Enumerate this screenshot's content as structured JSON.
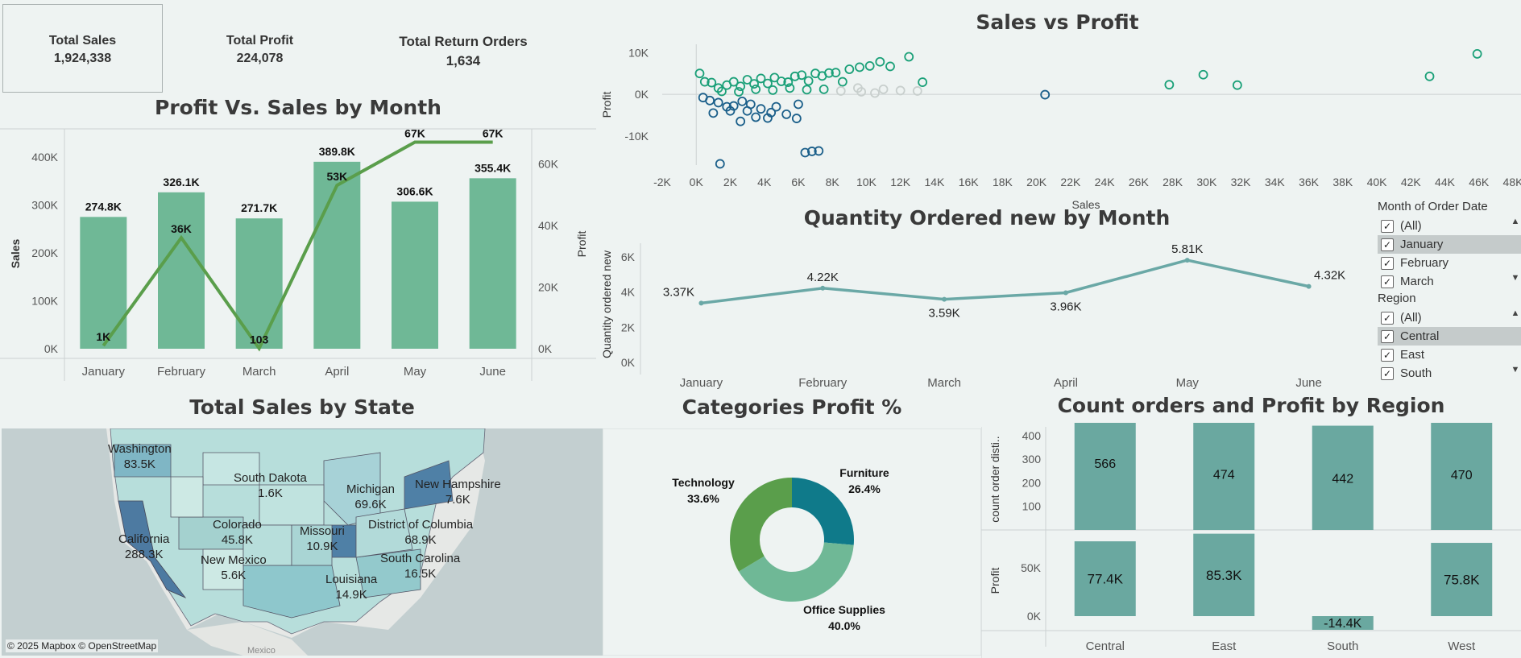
{
  "kpis": {
    "total_sales": {
      "label": "Total Sales",
      "value": "1,924,338"
    },
    "total_profit": {
      "label": "Total Profit",
      "value": "224,078"
    },
    "total_returns": {
      "label": "Total Return Orders",
      "value": "1,634"
    }
  },
  "titles": {
    "profit_sales_month": "Profit Vs. Sales by Month",
    "sales_vs_profit": "Sales vs Profit",
    "qty_month": "Quantity Ordered new by Month",
    "sales_state": "Total Sales by State",
    "cat_profit": "Categories Profit %",
    "region": "Count orders and Profit by Region"
  },
  "chart_data": [
    {
      "type": "bar",
      "title": "Profit Vs. Sales by Month",
      "categories": [
        "January",
        "February",
        "March",
        "April",
        "May",
        "June"
      ],
      "series": [
        {
          "name": "Sales",
          "values": [
            274800,
            326100,
            271700,
            389800,
            306600,
            355400
          ],
          "labels": [
            "274.8K",
            "326.1K",
            "271.7K",
            "389.8K",
            "306.6K",
            "355.4K"
          ]
        },
        {
          "name": "Profit",
          "values": [
            1000,
            36000,
            103,
            53000,
            67000,
            67000
          ],
          "labels": [
            "1K",
            "36K",
            "103",
            "53K",
            "67K",
            "67K"
          ]
        }
      ],
      "ylabel": "Sales",
      "y2label": "Profit",
      "ylim": [
        0,
        450000
      ],
      "y2lim": [
        0,
        70000
      ],
      "yticks": [
        "400K",
        "300K",
        "200K",
        "100K",
        "0K"
      ],
      "y2ticks": [
        "60K",
        "40K",
        "20K",
        "0K"
      ],
      "colors": {
        "bars": "#6fb896",
        "line": "#5a9e4b"
      }
    },
    {
      "type": "scatter",
      "title": "Sales vs Profit",
      "xlabel": "Sales",
      "ylabel": "Profit",
      "xlim": [
        -2000,
        48000
      ],
      "ylim": [
        -17000,
        12000
      ],
      "xticks": [
        "-2K",
        "0K",
        "2K",
        "4K",
        "6K",
        "8K",
        "10K",
        "12K",
        "14K",
        "16K",
        "18K",
        "20K",
        "22K",
        "24K",
        "26K",
        "28K",
        "30K",
        "32K",
        "34K",
        "36K",
        "38K",
        "40K",
        "42K",
        "44K",
        "46K",
        "48K"
      ],
      "yticks": [
        "10K",
        "0K",
        "-10K"
      ],
      "points": [
        [
          200,
          5000
        ],
        [
          500,
          3000
        ],
        [
          900,
          2800
        ],
        [
          1300,
          1500
        ],
        [
          1800,
          2200
        ],
        [
          2200,
          3000
        ],
        [
          2600,
          1900
        ],
        [
          3000,
          3500
        ],
        [
          3400,
          2500
        ],
        [
          3800,
          3800
        ],
        [
          4200,
          2600
        ],
        [
          4600,
          4000
        ],
        [
          5000,
          3100
        ],
        [
          5400,
          2900
        ],
        [
          5800,
          4300
        ],
        [
          6200,
          4600
        ],
        [
          6600,
          3200
        ],
        [
          7000,
          5000
        ],
        [
          7400,
          4400
        ],
        [
          7800,
          5100
        ],
        [
          8200,
          5200
        ],
        [
          8600,
          3000
        ],
        [
          9000,
          6000
        ],
        [
          9600,
          6500
        ],
        [
          10200,
          6800
        ],
        [
          10800,
          7800
        ],
        [
          11400,
          6700
        ],
        [
          12500,
          9000
        ],
        [
          13300,
          2900
        ],
        [
          27800,
          2300
        ],
        [
          29800,
          4700
        ],
        [
          31800,
          2200
        ],
        [
          43100,
          4300
        ],
        [
          45900,
          9700
        ],
        [
          800,
          -1500
        ],
        [
          1300,
          -2000
        ],
        [
          1800,
          -3000
        ],
        [
          2200,
          -2800
        ],
        [
          2700,
          -1700
        ],
        [
          3200,
          -2400
        ],
        [
          3500,
          -5500
        ],
        [
          3800,
          -3500
        ],
        [
          4400,
          -4400
        ],
        [
          4700,
          -3000
        ],
        [
          5300,
          -4800
        ],
        [
          6000,
          -2400
        ],
        [
          1000,
          -4500
        ],
        [
          2000,
          -4000
        ],
        [
          3000,
          -4000
        ],
        [
          2600,
          -6500
        ],
        [
          4200,
          -5700
        ],
        [
          5900,
          -5800
        ],
        [
          6400,
          -14000
        ],
        [
          6800,
          -13700
        ],
        [
          7200,
          -13600
        ],
        [
          1400,
          -16700
        ],
        [
          400,
          -800
        ],
        [
          1500,
          700
        ],
        [
          2500,
          600
        ],
        [
          3500,
          1200
        ],
        [
          4500,
          1000
        ],
        [
          5500,
          1500
        ],
        [
          6500,
          1100
        ],
        [
          7500,
          1200
        ],
        [
          8500,
          800
        ],
        [
          9500,
          1500
        ],
        [
          11000,
          1200
        ],
        [
          12000,
          900
        ],
        [
          13000,
          800
        ],
        [
          20500,
          -100
        ],
        [
          9700,
          600
        ],
        [
          10500,
          300
        ]
      ],
      "colors": {
        "positive": "#1aa078",
        "negative": "#1b5f8a",
        "neutral": "#c8cfcd"
      }
    },
    {
      "type": "line",
      "title": "Quantity Ordered new by Month",
      "ylabel": "Quantity ordered new",
      "categories": [
        "January",
        "February",
        "March",
        "April",
        "May",
        "June"
      ],
      "values": [
        3370,
        4220,
        3590,
        3960,
        5810,
        4320
      ],
      "labels": [
        "3.37K",
        "4.22K",
        "3.59K",
        "3.96K",
        "5.81K",
        "4.32K"
      ],
      "ylim": [
        0,
        6500
      ],
      "yticks": [
        "6K",
        "4K",
        "2K",
        "0K"
      ],
      "colors": {
        "line": "#6aa8a6"
      }
    },
    {
      "type": "pie",
      "title": "Categories Profit %",
      "slices": [
        {
          "name": "Furniture",
          "percent": 26.4,
          "label": "26.4%",
          "color": "#0f7a8a"
        },
        {
          "name": "Office Supplies",
          "percent": 40.0,
          "label": "40.0%",
          "color": "#6fb896"
        },
        {
          "name": "Technology",
          "percent": 33.6,
          "label": "33.6%",
          "color": "#5a9e4b"
        }
      ]
    },
    {
      "type": "bar",
      "title": "Count orders and Profit by Region",
      "categories": [
        "Central",
        "East",
        "South",
        "West"
      ],
      "series": [
        {
          "name": "count order disti..",
          "values": [
            566,
            474,
            442,
            470
          ],
          "labels": [
            "566",
            "474",
            "442",
            "470"
          ]
        },
        {
          "name": "Profit",
          "values": [
            77400,
            85300,
            -14400,
            75800
          ],
          "labels": [
            "77.4K",
            "85.3K",
            "-14.4K",
            "75.8K"
          ]
        }
      ],
      "countticks": [
        "400",
        "300",
        "200",
        "100"
      ],
      "profitticks": [
        "50K",
        "0K"
      ],
      "colors": {
        "bars": "#6aa8a0"
      }
    }
  ],
  "map": {
    "attribution": "© 2025 Mapbox © OpenStreetMap",
    "mexico_label": "Mexico",
    "states": [
      {
        "name": "Washington",
        "value": "83.5K"
      },
      {
        "name": "South Dakota",
        "value": "1.6K"
      },
      {
        "name": "Michigan",
        "value": "69.6K"
      },
      {
        "name": "New Hampshire",
        "value": "7.6K"
      },
      {
        "name": "California",
        "value": "288.3K"
      },
      {
        "name": "Colorado",
        "value": "45.8K"
      },
      {
        "name": "Missouri",
        "value": "10.9K"
      },
      {
        "name": "District of Columbia",
        "value": "68.9K"
      },
      {
        "name": "New Mexico",
        "value": "5.6K"
      },
      {
        "name": "South Carolina",
        "value": "16.5K"
      },
      {
        "name": "Louisiana",
        "value": "14.9K"
      }
    ]
  },
  "filters": {
    "month": {
      "header": "Month of Order Date",
      "items": [
        "(All)",
        "January",
        "February",
        "March"
      ],
      "selected": "January"
    },
    "region": {
      "header": "Region",
      "items": [
        "(All)",
        "Central",
        "East",
        "South"
      ],
      "selected": "Central"
    }
  }
}
